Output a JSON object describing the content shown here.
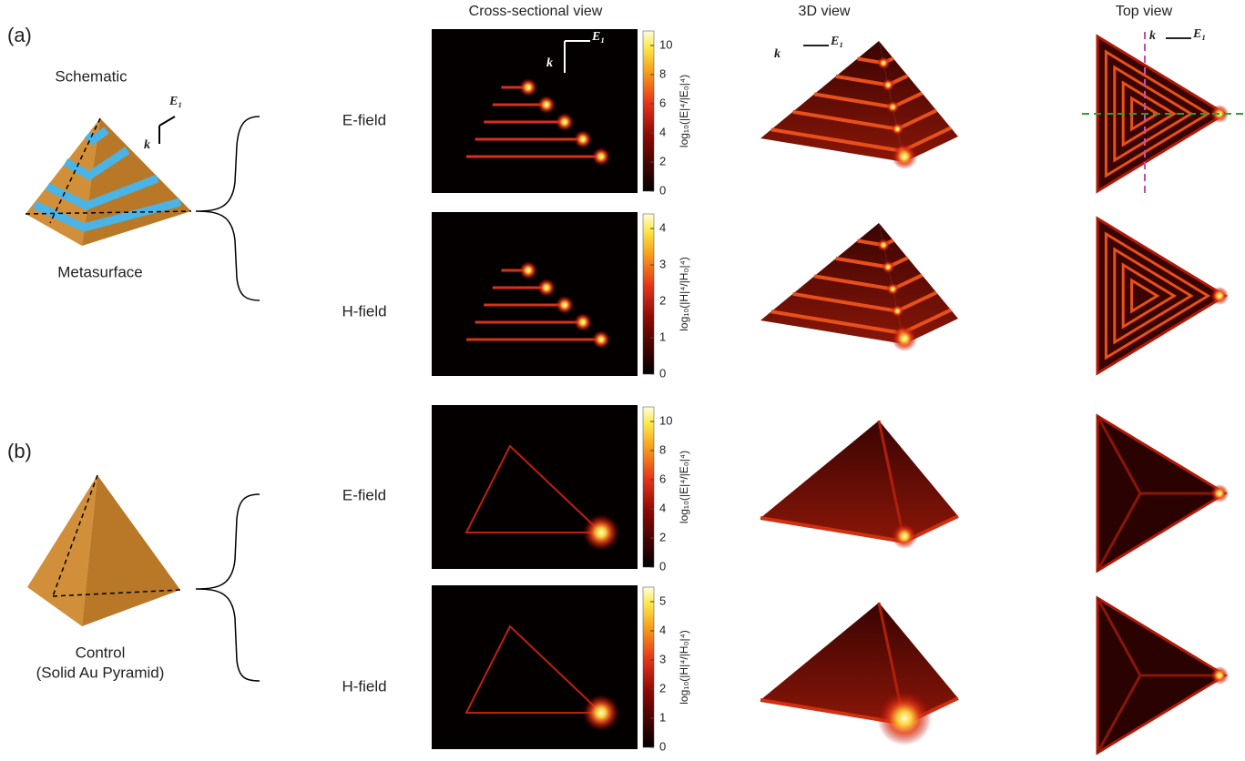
{
  "panel_labels": [
    "(a)",
    "(b)"
  ],
  "column_headers": [
    "Cross-sectional view",
    "3D view",
    "Top view"
  ],
  "schematic": {
    "top_label": "Schematic",
    "bottom_label": "Metasurface"
  },
  "control": {
    "label": "Control",
    "sublabel": "(Solid Au Pyramid)"
  },
  "axis_labels": {
    "k": "k",
    "e1": "E₁"
  },
  "rows": [
    {
      "field": "E-field",
      "colorbar_label": "log₁₀(|E|⁴/|E₀|⁴)",
      "ticks": [
        0,
        2,
        4,
        6,
        8,
        10
      ]
    },
    {
      "field": "H-field",
      "colorbar_label": "log₁₀(|H|⁴/|H₀|⁴)",
      "ticks": [
        0,
        1,
        2,
        3,
        4
      ]
    },
    {
      "field": "E-field",
      "colorbar_label": "log₁₀(|E|⁴/|E₀|⁴)",
      "ticks": [
        0,
        2,
        4,
        6,
        8,
        10
      ]
    },
    {
      "field": "H-field",
      "colorbar_label": "log₁₀(|H|⁴/|H₀|⁴)",
      "ticks": [
        0,
        1,
        2,
        3,
        4,
        5
      ]
    }
  ]
}
